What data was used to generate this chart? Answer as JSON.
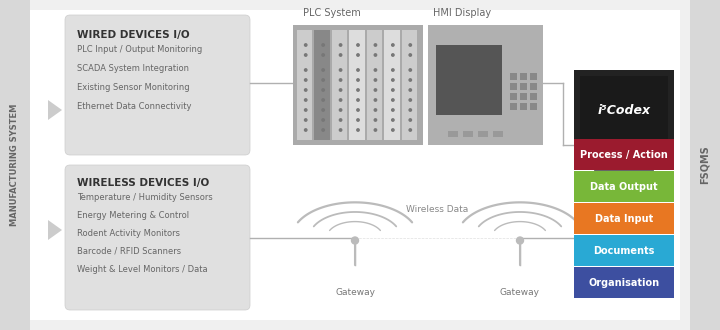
{
  "bg_color": "#f0f0f0",
  "manufacturing_label": "MANUFACTURING SYSTEM",
  "fsqms_label": "FSQMS",
  "wired_title": "WIRED DEVICES I/O",
  "wired_items": [
    "PLC Input / Output Monitoring",
    "SCADA System Integration",
    "Existing Sensor Monitoring",
    "Ethernet Data Connectivity"
  ],
  "wireless_title": "WIRELESS DEVICES I/O",
  "wireless_items": [
    "Temperature / Humidity Sensors",
    "Energy Metering & Control",
    "Rodent Activity Monitors",
    "Barcode / RFID Scanners",
    "Weight & Level Monitors / Data"
  ],
  "plc_label": "PLC System",
  "hmi_label": "HMI Display",
  "wireless_data_label": "Wireless Data",
  "gateway_label": "Gateway",
  "i5codex_label": "i⁵Codex",
  "color_boxes": [
    {
      "label": "Organisation",
      "color": "#3d4fa0"
    },
    {
      "label": "Documents",
      "color": "#29a9d4"
    },
    {
      "label": "Data Input",
      "color": "#e87722"
    },
    {
      "label": "Data Output",
      "color": "#78b739"
    },
    {
      "label": "Process / Action",
      "color": "#9b1b2e"
    }
  ],
  "sidebar_color": "#d8d8d8",
  "box_color": "#e0e0e0",
  "line_color": "#b0b0b0",
  "text_dark": "#555555",
  "text_title": "#333333"
}
